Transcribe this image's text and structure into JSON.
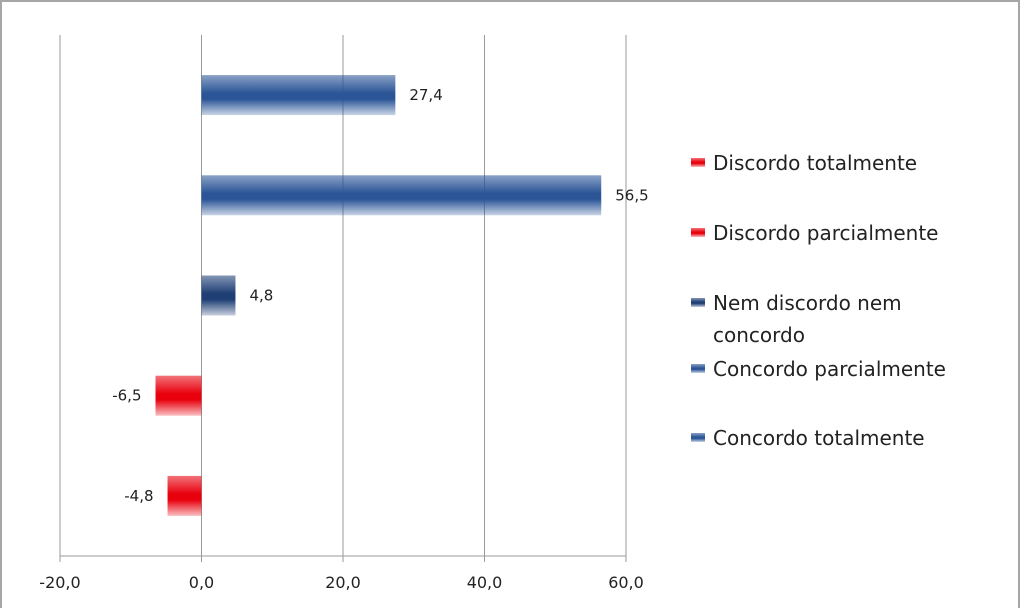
{
  "chart_data": {
    "type": "bar",
    "orientation": "horizontal",
    "grid": true,
    "legend": "right",
    "xlim": [
      -20,
      60
    ],
    "ticks": [
      -20,
      0,
      20,
      40,
      60
    ],
    "tick_labels": [
      "-20,0",
      "0,0",
      "20,0",
      "40,0",
      "60,0"
    ],
    "series": [
      {
        "name": "Discordo totalmente",
        "value": -4.8,
        "label": "-4,8",
        "color": "#e8000d"
      },
      {
        "name": "Discordo parcialmente",
        "value": -6.5,
        "label": "-6,5",
        "color": "#e8000d"
      },
      {
        "name": "Nem discordo nem concordo",
        "value": 4.8,
        "label": "4,8",
        "color": "#1f3f75"
      },
      {
        "name": "Concordo parcialmente",
        "value": 56.5,
        "label": "56,5",
        "color": "#2b5597"
      },
      {
        "name": "Concordo totalmente",
        "value": 27.4,
        "label": "27,4",
        "color": "#2b5597"
      }
    ],
    "legend_entries": [
      {
        "lines": [
          "Discordo totalmente"
        ],
        "color": "#e8000d"
      },
      {
        "lines": [
          "Discordo parcialmente"
        ],
        "color": "#e8000d"
      },
      {
        "lines": [
          "Nem discordo nem",
          "concordo"
        ],
        "color": "#1f3f75"
      },
      {
        "lines": [
          "Concordo parcialmente"
        ],
        "color": "#2b5597"
      },
      {
        "lines": [
          "Concordo totalmente"
        ],
        "color": "#2b5597"
      }
    ]
  }
}
